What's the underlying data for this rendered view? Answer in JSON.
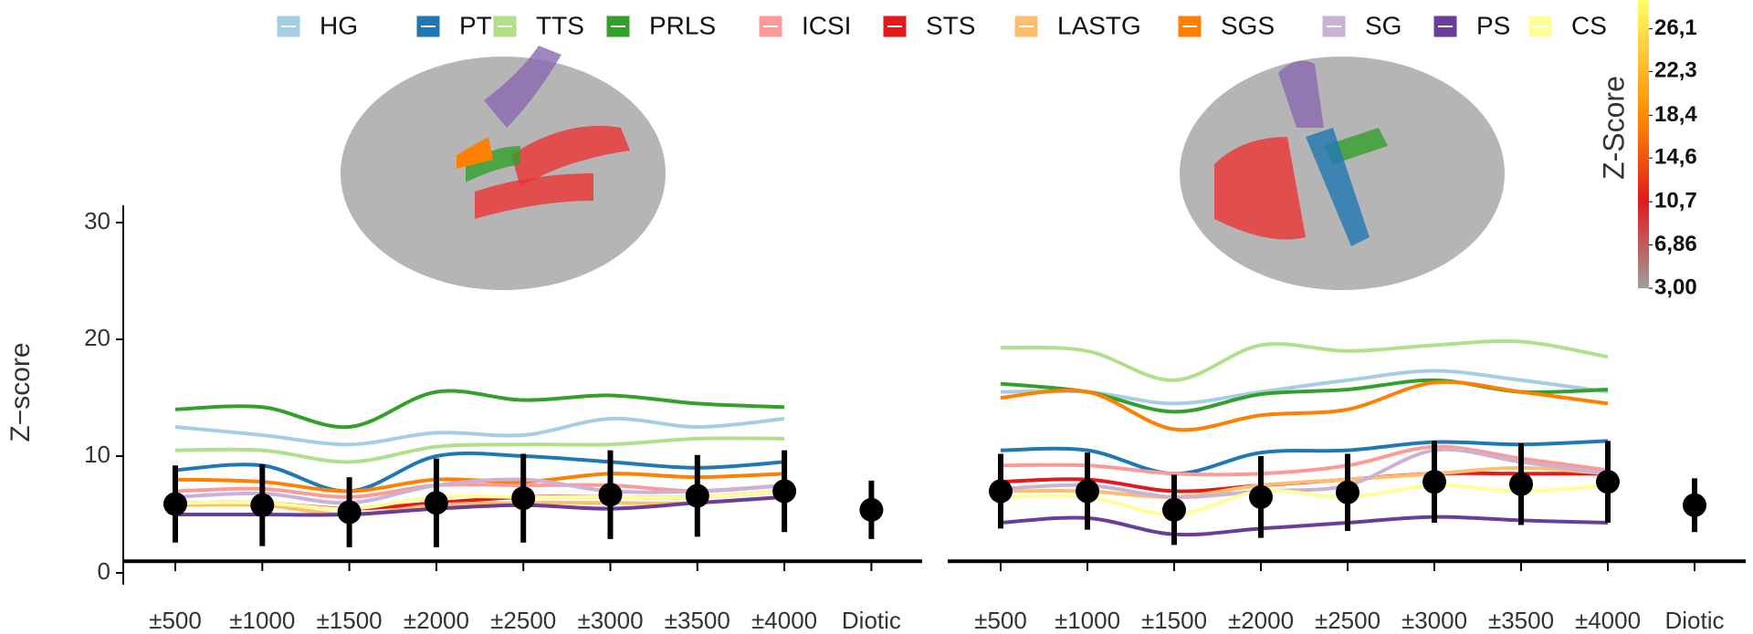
{
  "chart_data": [
    {
      "type": "line",
      "y_label": "Z−score",
      "categories": [
        "±500",
        "±1000",
        "±1500",
        "±2000",
        "±2500",
        "±3000",
        "±3500",
        "±4000",
        "Diotic"
      ],
      "ylim": [
        -1,
        31
      ],
      "yticks": [
        0,
        10,
        20,
        30
      ],
      "reference_line": 1,
      "series": [
        {
          "name": "HG",
          "color": "#a6cee3",
          "values": [
            12.5,
            11.8,
            11,
            12,
            11.8,
            13.2,
            12.5,
            13.2,
            null
          ]
        },
        {
          "name": "PT",
          "color": "#1f78b4",
          "values": [
            8.8,
            9.2,
            7,
            10,
            10,
            9.5,
            9,
            9.5,
            null
          ]
        },
        {
          "name": "TTS",
          "color": "#b2df8a",
          "values": [
            10.5,
            10.5,
            9.5,
            10.8,
            11,
            11,
            11.5,
            11.5,
            null
          ]
        },
        {
          "name": "PRLS",
          "color": "#33a02c",
          "values": [
            14,
            14.2,
            12.5,
            15.5,
            14.8,
            15.2,
            14.5,
            14.2,
            null
          ]
        },
        {
          "name": "ICSI",
          "color": "#fb9a99",
          "values": [
            7,
            7.2,
            6.5,
            7.5,
            7.5,
            7.5,
            7,
            7.5,
            null
          ]
        },
        {
          "name": "STS",
          "color": "#e31a1c",
          "values": [
            6,
            6,
            5.5,
            6,
            6.5,
            6.5,
            6.5,
            7,
            null
          ]
        },
        {
          "name": "LASTG",
          "color": "#fdbf6f",
          "values": [
            5.8,
            5.8,
            5,
            5.8,
            6,
            6,
            6,
            6.5,
            null
          ]
        },
        {
          "name": "SGS",
          "color": "#ff7f00",
          "values": [
            8,
            7.8,
            7,
            8,
            7.8,
            8.5,
            8.2,
            8.5,
            null
          ]
        },
        {
          "name": "SG",
          "color": "#cab2d6",
          "values": [
            6.5,
            6.8,
            6,
            7.5,
            8,
            7,
            7,
            7.5,
            null
          ]
        },
        {
          "name": "PS",
          "color": "#6a3d9a",
          "values": [
            5,
            5,
            5,
            5.5,
            5.8,
            5.5,
            6,
            6.5,
            null
          ]
        },
        {
          "name": "CS",
          "color": "#ffff99",
          "values": [
            6,
            6,
            5.5,
            6.5,
            6.5,
            6.5,
            6.5,
            7,
            null
          ]
        }
      ],
      "mean": {
        "color": "#000000",
        "values": [
          5.9,
          5.8,
          5.2,
          6,
          6.4,
          6.7,
          6.6,
          7,
          5.4
        ],
        "error": [
          3.3,
          3.5,
          3,
          3.8,
          3.8,
          3.8,
          3.5,
          3.5,
          2.5
        ]
      }
    },
    {
      "type": "line",
      "categories": [
        "±500",
        "±1000",
        "±1500",
        "±2000",
        "±2500",
        "±3000",
        "±3500",
        "±4000",
        "Diotic"
      ],
      "ylim": [
        -1,
        31
      ],
      "reference_line": 1,
      "series": [
        {
          "name": "HG",
          "color": "#a6cee3",
          "values": [
            15.5,
            15.5,
            14.5,
            15.5,
            16.5,
            17.3,
            16.5,
            15.5,
            null
          ]
        },
        {
          "name": "PT",
          "color": "#1f78b4",
          "values": [
            10.5,
            10.5,
            8.5,
            10.3,
            10.5,
            11.2,
            11,
            11.3,
            null
          ]
        },
        {
          "name": "TTS",
          "color": "#b2df8a",
          "values": [
            19.3,
            19,
            16.5,
            19.5,
            19,
            19.5,
            19.8,
            18.5,
            null
          ]
        },
        {
          "name": "PRLS",
          "color": "#33a02c",
          "values": [
            16.2,
            15.5,
            13.8,
            15.3,
            15.7,
            16.5,
            15.5,
            15.7,
            null
          ]
        },
        {
          "name": "ICSI",
          "color": "#fb9a99",
          "values": [
            9.2,
            9.2,
            8.5,
            8.5,
            9.2,
            10.8,
            9.8,
            8.8,
            null
          ]
        },
        {
          "name": "STS",
          "color": "#e31a1c",
          "values": [
            7.8,
            8,
            7,
            7.5,
            8,
            8.5,
            8.5,
            8.5,
            null
          ]
        },
        {
          "name": "LASTG",
          "color": "#fdbf6f",
          "values": [
            7,
            7,
            6.5,
            7.5,
            8,
            8.5,
            9,
            8.5,
            null
          ]
        },
        {
          "name": "SGS",
          "color": "#ff7f00",
          "values": [
            15,
            15.5,
            12.3,
            13.5,
            14,
            16.3,
            15.5,
            14.5,
            null
          ]
        },
        {
          "name": "SG",
          "color": "#cab2d6",
          "values": [
            7.2,
            7.5,
            6.5,
            7,
            7.5,
            10.5,
            9.5,
            8.5,
            null
          ]
        },
        {
          "name": "PS",
          "color": "#6a3d9a",
          "values": [
            4.3,
            4.7,
            3.3,
            3.8,
            4.3,
            4.8,
            4.5,
            4.3,
            null
          ]
        },
        {
          "name": "CS",
          "color": "#ffff99",
          "values": [
            6.5,
            6.5,
            5,
            7,
            6.5,
            7.5,
            7,
            7.5,
            null
          ]
        }
      ],
      "mean": {
        "color": "#000000",
        "values": [
          7,
          7,
          5.4,
          6.5,
          6.9,
          7.8,
          7.6,
          7.8,
          5.8
        ],
        "error": [
          3.2,
          3.3,
          3,
          3.5,
          3.3,
          3.5,
          3.5,
          3.5,
          2.3
        ]
      }
    }
  ],
  "colorbar": {
    "title": "Z-Score",
    "lim": [
      3,
      28.1
    ],
    "ticks": [
      {
        "value": 26.1,
        "label": "26,1"
      },
      {
        "value": 22.3,
        "label": "22,3"
      },
      {
        "value": 18.4,
        "label": "18,4"
      },
      {
        "value": 14.6,
        "label": "14,6"
      },
      {
        "value": 10.7,
        "label": "10,7"
      },
      {
        "value": 6.86,
        "label": "6,86"
      },
      {
        "value": 3.0,
        "label": "3,00"
      }
    ]
  }
}
